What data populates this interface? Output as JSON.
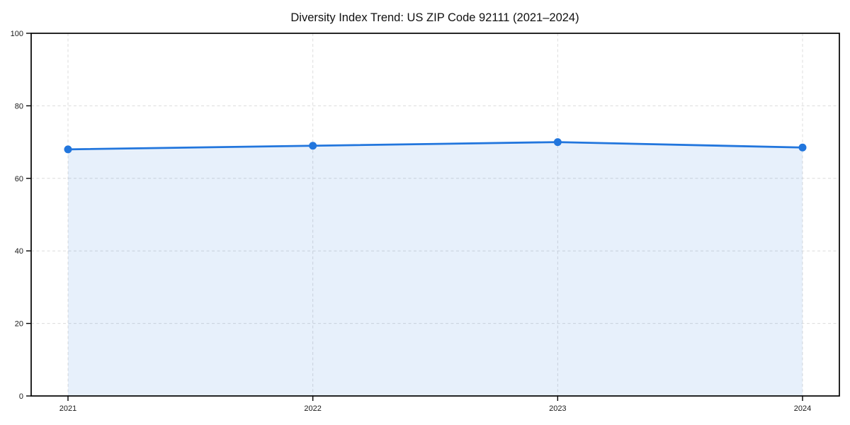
{
  "title": "Diversity Index Trend: US ZIP Code 92111 (2021–2024)",
  "chart_data": {
    "type": "area",
    "title": "Diversity Index Trend: US ZIP Code 92111 (2021–2024)",
    "categories": [
      "2021",
      "2022",
      "2023",
      "2024"
    ],
    "series": [
      {
        "name": "Diversity Index",
        "values": [
          68,
          69,
          70,
          68.5
        ]
      }
    ],
    "xlabel": "",
    "ylabel": "",
    "ylim": [
      0,
      100
    ],
    "y_ticks": [
      0,
      20,
      40,
      60,
      80,
      100
    ],
    "grid": true,
    "legend_position": "none",
    "line_color": "#2276dd",
    "marker_color": "#2276dd",
    "fill_color": "rgba(34,118,221,0.11)",
    "grid_color": "#dcdcdc",
    "axis_color": "#000000",
    "background_color": "#ffffff"
  }
}
